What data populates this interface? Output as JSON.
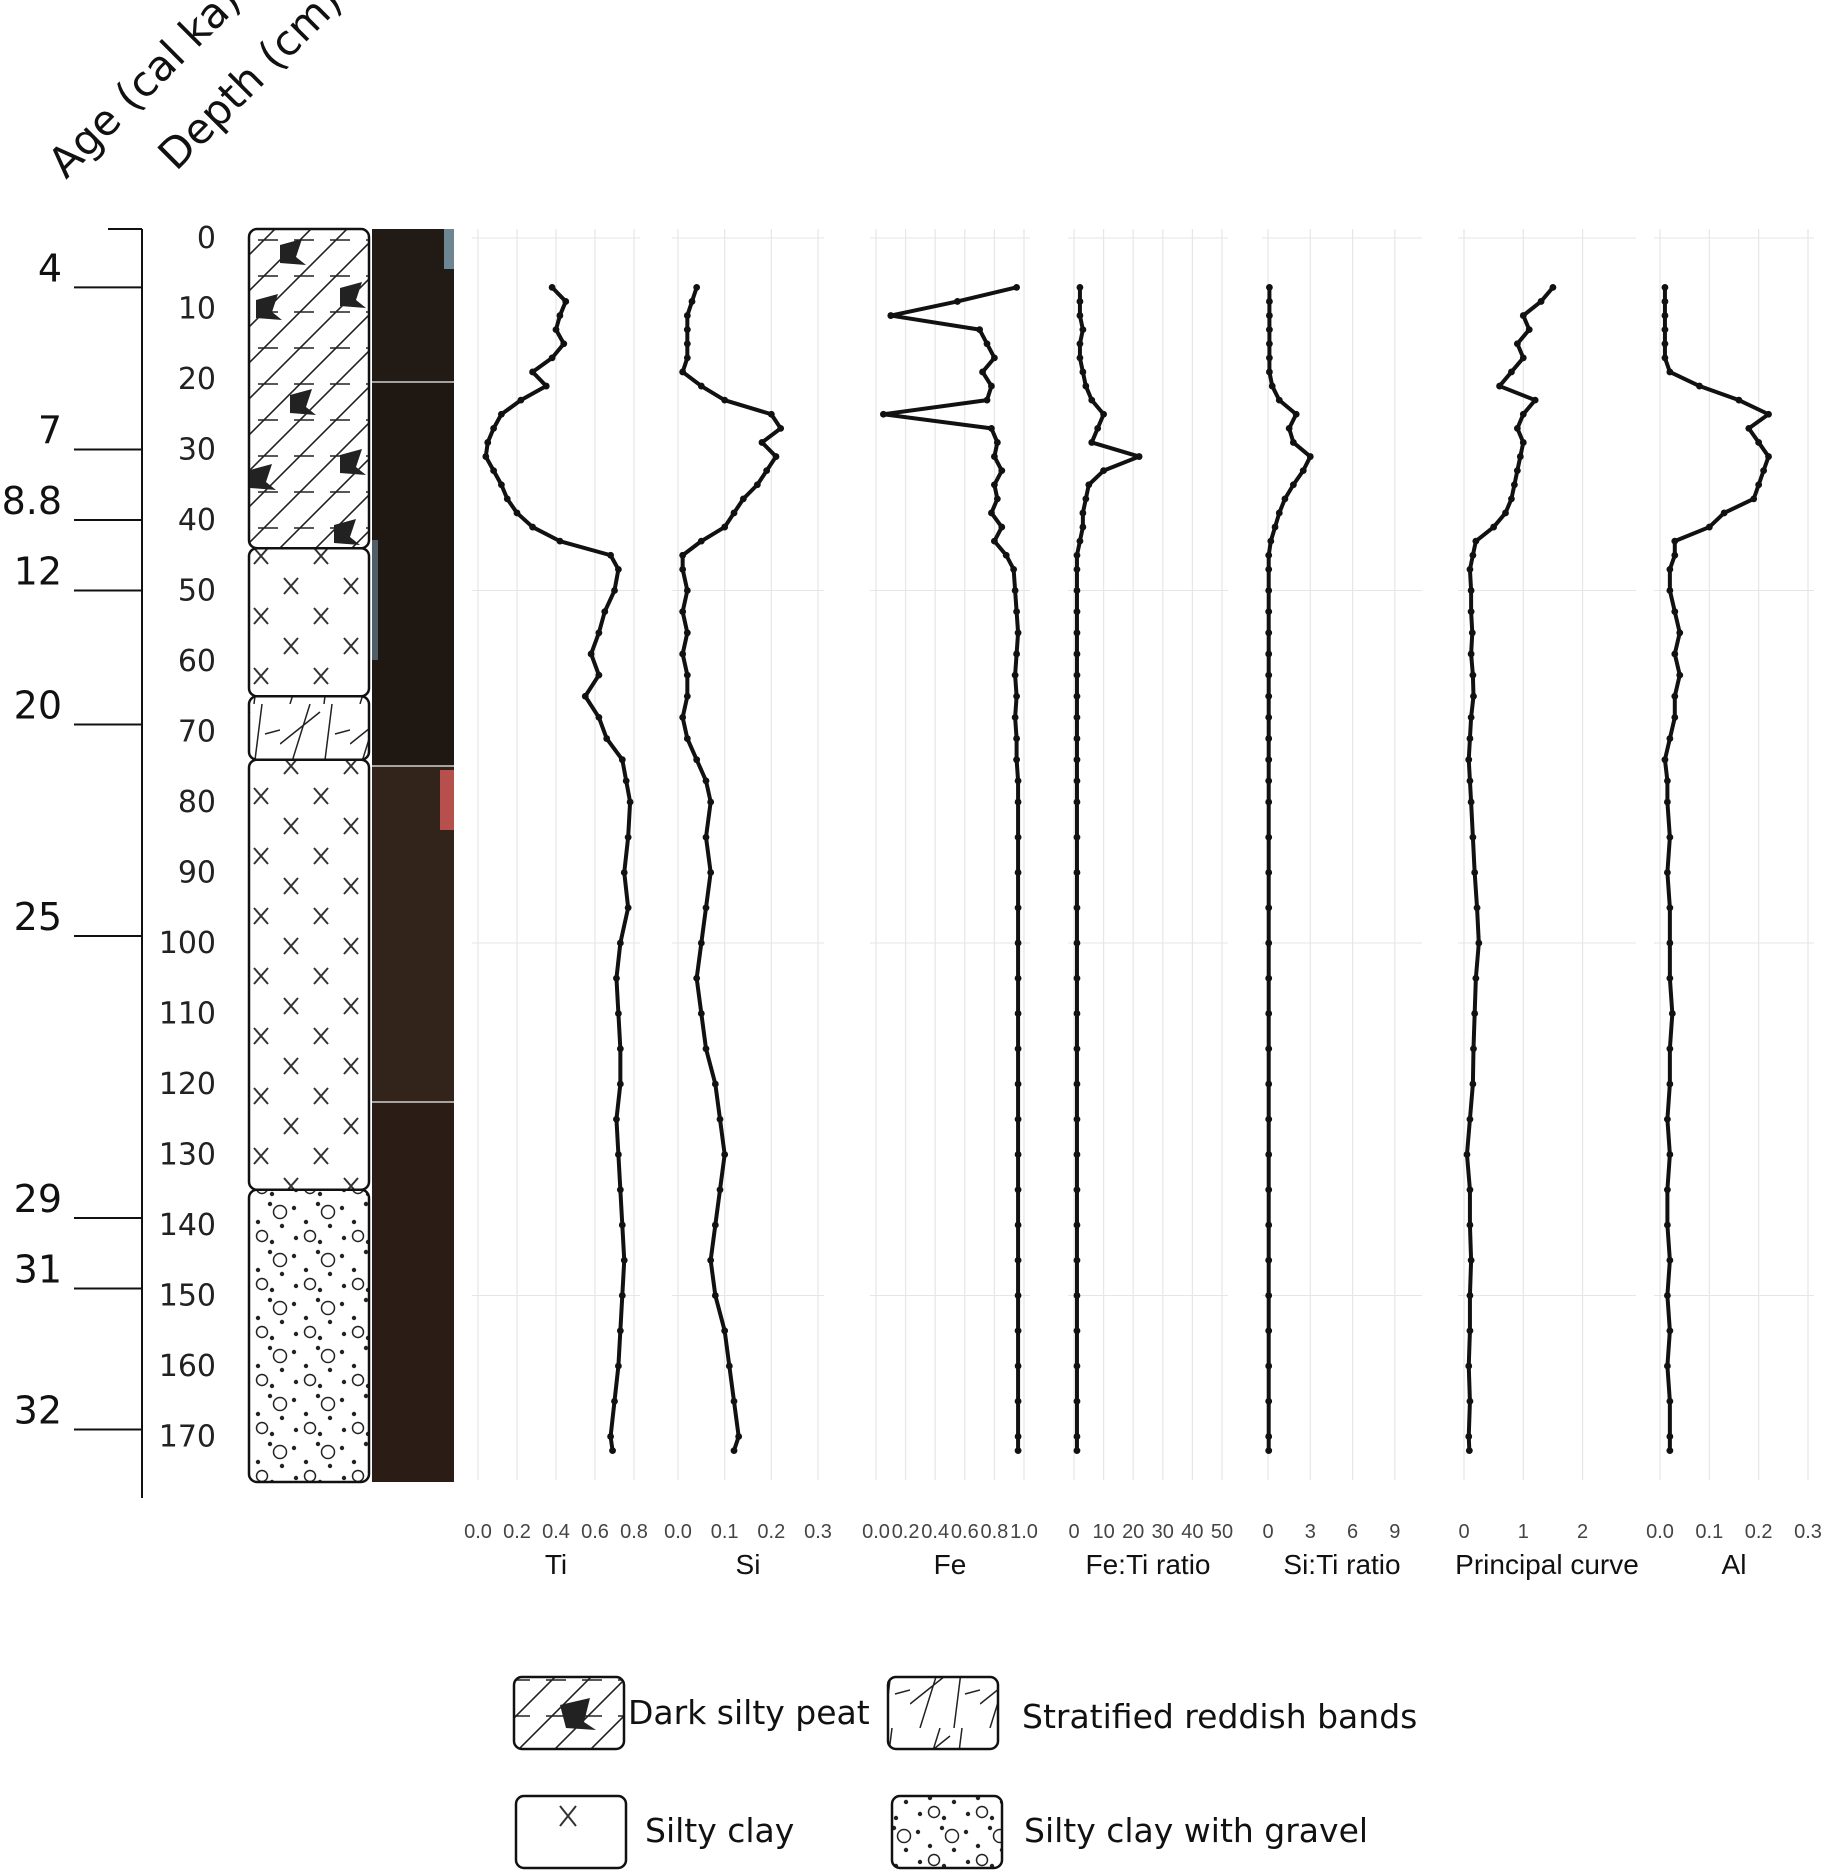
{
  "headers": {
    "age": "Age (cal ka)",
    "depth": "Depth (cm)"
  },
  "age_ticks": [
    {
      "age": "4",
      "depth": 7
    },
    {
      "age": "7",
      "depth": 30
    },
    {
      "age": "8.8",
      "depth": 40
    },
    {
      "age": "12",
      "depth": 50
    },
    {
      "age": "20",
      "depth": 69
    },
    {
      "age": "25",
      "depth": 99
    },
    {
      "age": "29",
      "depth": 139
    },
    {
      "age": "31",
      "depth": 149
    },
    {
      "age": "32",
      "depth": 169
    }
  ],
  "depth_ticks": [
    0,
    10,
    20,
    30,
    40,
    50,
    60,
    70,
    80,
    90,
    100,
    110,
    120,
    130,
    140,
    150,
    160,
    170
  ],
  "lithology": [
    {
      "unit": "Dark silty peat",
      "top": 0,
      "bottom": 44
    },
    {
      "unit": "Silty clay",
      "top": 44,
      "bottom": 65
    },
    {
      "unit": "Stratified reddish bands",
      "top": 65,
      "bottom": 74
    },
    {
      "unit": "Silty clay",
      "top": 74,
      "bottom": 135
    },
    {
      "unit": "Silty clay with gravel",
      "top": 135,
      "bottom": 177
    }
  ],
  "legend": [
    {
      "key": "peat",
      "label": "Dark silty peat"
    },
    {
      "key": "bands",
      "label": "Stratified reddish bands"
    },
    {
      "key": "clay",
      "label": "Silty clay"
    },
    {
      "key": "gravel",
      "label": "Silty clay with gravel"
    }
  ],
  "colors": {
    "line": "#111111",
    "grid": "#e6e6e6",
    "core_dark": "#231a14",
    "core_brown": "#3d2a1f"
  },
  "chart_data": {
    "type": "line",
    "title": "",
    "ylabel": "Depth (cm)",
    "ylim": [
      0,
      177
    ],
    "y_reversed": true,
    "depth": [
      7,
      9,
      11,
      13,
      15,
      17,
      19,
      21,
      23,
      25,
      27,
      29,
      31,
      33,
      35,
      37,
      39,
      41,
      43,
      45,
      47,
      50,
      53,
      56,
      59,
      62,
      65,
      68,
      71,
      74,
      77,
      80,
      85,
      90,
      95,
      100,
      105,
      110,
      115,
      120,
      125,
      130,
      135,
      140,
      145,
      150,
      155,
      160,
      165,
      170,
      172
    ],
    "series": [
      {
        "name": "Ti",
        "xlim": [
          0,
          0.8
        ],
        "ticks": [
          "0.0",
          "0.2",
          "0.4",
          "0.6",
          "0.8"
        ],
        "values": [
          0.38,
          0.45,
          0.42,
          0.4,
          0.44,
          0.38,
          0.28,
          0.35,
          0.22,
          0.12,
          0.08,
          0.05,
          0.04,
          0.08,
          0.12,
          0.15,
          0.2,
          0.28,
          0.42,
          0.68,
          0.72,
          0.7,
          0.65,
          0.62,
          0.58,
          0.62,
          0.55,
          0.62,
          0.66,
          0.74,
          0.76,
          0.78,
          0.77,
          0.75,
          0.77,
          0.73,
          0.71,
          0.72,
          0.73,
          0.73,
          0.71,
          0.72,
          0.73,
          0.74,
          0.75,
          0.74,
          0.73,
          0.72,
          0.7,
          0.68,
          0.69
        ]
      },
      {
        "name": "Si",
        "xlim": [
          0,
          0.3
        ],
        "ticks": [
          "0.0",
          "0.1",
          "0.2",
          "0.3"
        ],
        "values": [
          0.04,
          0.03,
          0.02,
          0.02,
          0.02,
          0.02,
          0.01,
          0.05,
          0.1,
          0.2,
          0.22,
          0.18,
          0.21,
          0.19,
          0.17,
          0.14,
          0.12,
          0.1,
          0.05,
          0.01,
          0.01,
          0.02,
          0.01,
          0.02,
          0.01,
          0.02,
          0.02,
          0.01,
          0.02,
          0.04,
          0.06,
          0.07,
          0.06,
          0.07,
          0.06,
          0.05,
          0.04,
          0.05,
          0.06,
          0.08,
          0.09,
          0.1,
          0.09,
          0.08,
          0.07,
          0.08,
          0.1,
          0.11,
          0.12,
          0.13,
          0.12
        ]
      },
      {
        "name": "Fe",
        "xlim": [
          0,
          1.0
        ],
        "ticks": [
          "0.0",
          "0.2",
          "0.4",
          "0.6",
          "0.8",
          "1.0"
        ],
        "values": [
          0.95,
          0.55,
          0.1,
          0.7,
          0.75,
          0.8,
          0.72,
          0.78,
          0.75,
          0.05,
          0.78,
          0.82,
          0.8,
          0.85,
          0.8,
          0.82,
          0.78,
          0.85,
          0.8,
          0.88,
          0.93,
          0.94,
          0.95,
          0.96,
          0.95,
          0.94,
          0.95,
          0.94,
          0.95,
          0.95,
          0.96,
          0.96,
          0.96,
          0.96,
          0.96,
          0.96,
          0.96,
          0.96,
          0.96,
          0.96,
          0.96,
          0.96,
          0.96,
          0.96,
          0.96,
          0.96,
          0.96,
          0.96,
          0.96,
          0.96,
          0.96
        ]
      },
      {
        "name": "Fe:Ti ratio",
        "xlim": [
          0,
          50
        ],
        "ticks": [
          "0",
          "10",
          "20",
          "30",
          "40",
          "50"
        ],
        "values": [
          2,
          2,
          2,
          3,
          2,
          2,
          3,
          4,
          6,
          10,
          8,
          6,
          22,
          10,
          5,
          4,
          3,
          3,
          2,
          1,
          1,
          1,
          1,
          1,
          1,
          1,
          1,
          1,
          1,
          1,
          1,
          1,
          1,
          1,
          1,
          1,
          1,
          1,
          1,
          1,
          1,
          1,
          1,
          1,
          1,
          1,
          1,
          1,
          1,
          1,
          1
        ]
      },
      {
        "name": "Si:Ti ratio",
        "xlim": [
          0,
          10.5
        ],
        "ticks": [
          "0",
          "3",
          "6",
          "9"
        ],
        "values": [
          0.1,
          0.1,
          0.1,
          0.1,
          0.1,
          0.1,
          0.1,
          0.3,
          0.8,
          2.0,
          1.5,
          1.8,
          3.0,
          2.5,
          1.8,
          1.2,
          0.8,
          0.5,
          0.2,
          0.05,
          0.05,
          0.05,
          0.05,
          0.05,
          0.05,
          0.05,
          0.05,
          0.05,
          0.05,
          0.05,
          0.05,
          0.05,
          0.05,
          0.05,
          0.05,
          0.05,
          0.05,
          0.05,
          0.05,
          0.05,
          0.05,
          0.05,
          0.05,
          0.05,
          0.05,
          0.05,
          0.05,
          0.05,
          0.05,
          0.05,
          0.05
        ]
      },
      {
        "name": "Principal curve",
        "xlim": [
          0,
          2.8
        ],
        "ticks": [
          "0",
          "1",
          "2"
        ],
        "values": [
          1.5,
          1.3,
          1.0,
          1.1,
          0.9,
          1.0,
          0.8,
          0.6,
          1.2,
          1.0,
          0.9,
          1.0,
          0.95,
          0.9,
          0.85,
          0.8,
          0.7,
          0.5,
          0.2,
          0.15,
          0.1,
          0.12,
          0.12,
          0.14,
          0.12,
          0.15,
          0.16,
          0.12,
          0.1,
          0.08,
          0.1,
          0.12,
          0.15,
          0.18,
          0.22,
          0.25,
          0.2,
          0.18,
          0.16,
          0.15,
          0.1,
          0.05,
          0.1,
          0.1,
          0.12,
          0.1,
          0.1,
          0.08,
          0.1,
          0.08,
          0.09
        ]
      },
      {
        "name": "Al",
        "xlim": [
          0,
          0.3
        ],
        "ticks": [
          "0.0",
          "0.1",
          "0.2",
          "0.3"
        ],
        "values": [
          0.01,
          0.01,
          0.01,
          0.01,
          0.01,
          0.01,
          0.02,
          0.08,
          0.16,
          0.22,
          0.18,
          0.2,
          0.22,
          0.21,
          0.2,
          0.19,
          0.13,
          0.1,
          0.03,
          0.03,
          0.02,
          0.02,
          0.03,
          0.04,
          0.03,
          0.04,
          0.03,
          0.03,
          0.02,
          0.01,
          0.015,
          0.015,
          0.02,
          0.015,
          0.02,
          0.02,
          0.02,
          0.025,
          0.02,
          0.02,
          0.015,
          0.02,
          0.015,
          0.015,
          0.02,
          0.015,
          0.02,
          0.015,
          0.02,
          0.02,
          0.02
        ]
      }
    ]
  }
}
